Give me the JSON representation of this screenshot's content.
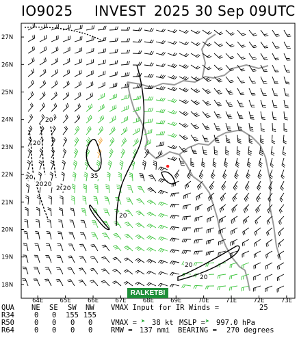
{
  "title": {
    "storm_id": "IO9025",
    "storm_type": "INVEST",
    "date_time": "2025 30 Sep 09UTC"
  },
  "map": {
    "lon_ticks": [
      "64E",
      "65E",
      "66E",
      "67E",
      "68E",
      "69E",
      "70E",
      "71E",
      "72E",
      "73E"
    ],
    "lat_ticks": [
      "27N",
      "26N",
      "25N",
      "24N",
      "23N",
      "22N",
      "21N",
      "20N",
      "19N",
      "18N"
    ],
    "contour_labels": [
      "20",
      "20",
      "20",
      "20",
      "20",
      "20",
      "20",
      "35",
      "20",
      "20",
      "20"
    ],
    "colors": {
      "barb": "#000000",
      "barb_34kt": "#3cc43c",
      "barb_50kt": "#f0a030",
      "coast": "#9a9a9a",
      "contour": "#000000",
      "center": "#ff2020"
    },
    "center": {
      "lon": 68.7,
      "lat": 22.3
    }
  },
  "badge": "RALKETBI",
  "table": {
    "header": [
      "QUA",
      "NE",
      "SE",
      "SW",
      "NW"
    ],
    "rows": [
      {
        "label": "R34",
        "values": [
          "0",
          "0",
          "155",
          "155"
        ]
      },
      {
        "label": "R50",
        "values": [
          "0",
          "0",
          "0",
          "0"
        ]
      },
      {
        "label": "R64",
        "values": [
          "0",
          "0",
          "0",
          "0"
        ]
      }
    ]
  },
  "summary": {
    "vmax_input_label": "VMAX Input for IR Winds =",
    "vmax_input_value": "25",
    "vmax_label": "VMAX =",
    "vmax_value": "38 kt",
    "mslp_label": "MSLP =",
    "mslp_value": "997.0 hPa",
    "rmw_label": "RMW =",
    "rmw_value": "137 nmi",
    "bearing_label": "BEARING =",
    "bearing_value": "270 degrees"
  }
}
